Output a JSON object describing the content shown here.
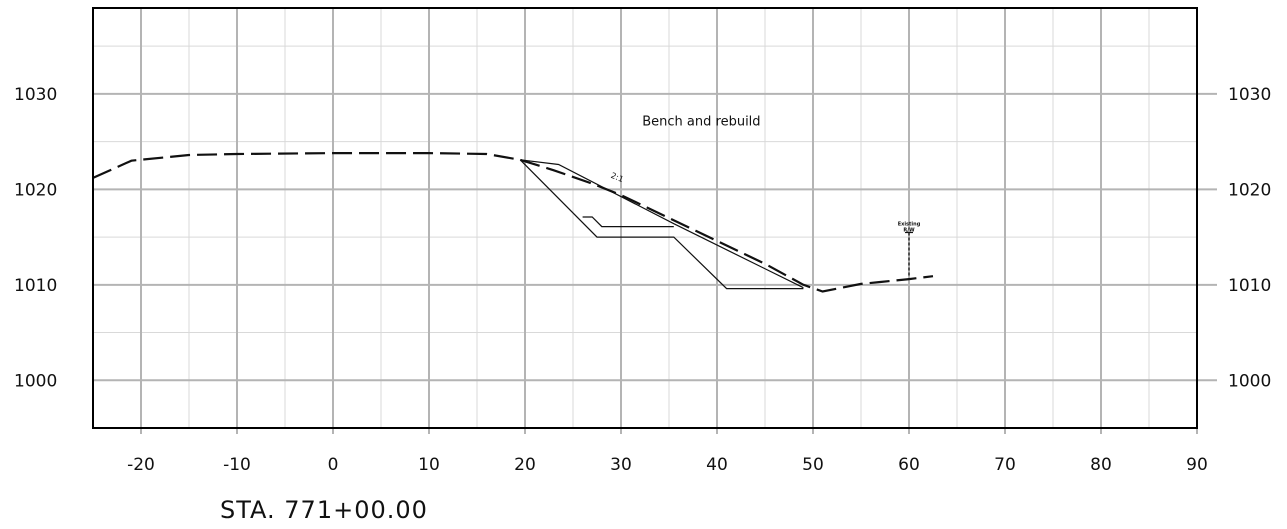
{
  "chart_data": {
    "type": "line",
    "title": "",
    "xlabel": "",
    "ylabel": "",
    "xlim": [
      -25,
      90
    ],
    "ylim": [
      995,
      1039
    ],
    "grid": true,
    "x_ticks": [
      -20,
      -10,
      0,
      10,
      20,
      30,
      40,
      50,
      60,
      70,
      80,
      90
    ],
    "y_ticks": [
      1000,
      1010,
      1020,
      1030
    ],
    "series": [
      {
        "style": "dashed",
        "points": [
          [
            -25,
            1021.2
          ],
          [
            -21,
            1023
          ],
          [
            -15,
            1023.6
          ],
          [
            -10,
            1023.7
          ],
          [
            0,
            1023.8
          ],
          [
            10,
            1023.8
          ],
          [
            16,
            1023.7
          ],
          [
            19.5,
            1023.1
          ],
          [
            23,
            1022
          ],
          [
            27,
            1020.6
          ],
          [
            30,
            1019.4
          ],
          [
            35,
            1017
          ],
          [
            40,
            1014.6
          ],
          [
            45,
            1012.2
          ],
          [
            49,
            1010
          ],
          [
            51,
            1009.3
          ],
          [
            53,
            1009.7
          ],
          [
            55,
            1010.1
          ],
          [
            57,
            1010.3
          ],
          [
            60,
            1010.6
          ],
          [
            62.5,
            1010.9
          ]
        ]
      },
      {
        "style": "solid",
        "points": [
          [
            19.5,
            1023.1
          ],
          [
            23.5,
            1022.6
          ],
          [
            35.5,
            1016.4
          ],
          [
            49,
            1009.7
          ]
        ]
      },
      {
        "style": "solid",
        "points": [
          [
            19.5,
            1023.1
          ],
          [
            27.5,
            1015
          ],
          [
            35.5,
            1015
          ],
          [
            41,
            1009.6
          ],
          [
            49,
            1009.6
          ]
        ]
      },
      {
        "style": "solid",
        "points": [
          [
            26,
            1017.1
          ],
          [
            27,
            1017.1
          ],
          [
            28,
            1016.1
          ],
          [
            35.5,
            1016.1
          ]
        ]
      }
    ],
    "annotations": {
      "bench": "Bench and rebuild",
      "slope": "2:1",
      "row_line1": "Existing",
      "row_line2": "R/W"
    },
    "row_marker": {
      "x": 60,
      "y_top": 1015.9,
      "y_bottom": 1010.8
    },
    "annotation_positions": {
      "bench": [
        31.5,
        1027.2
      ],
      "slope": [
        29.5,
        1021
      ]
    }
  },
  "footer": {
    "station_label": "STA. 771+00.00"
  }
}
